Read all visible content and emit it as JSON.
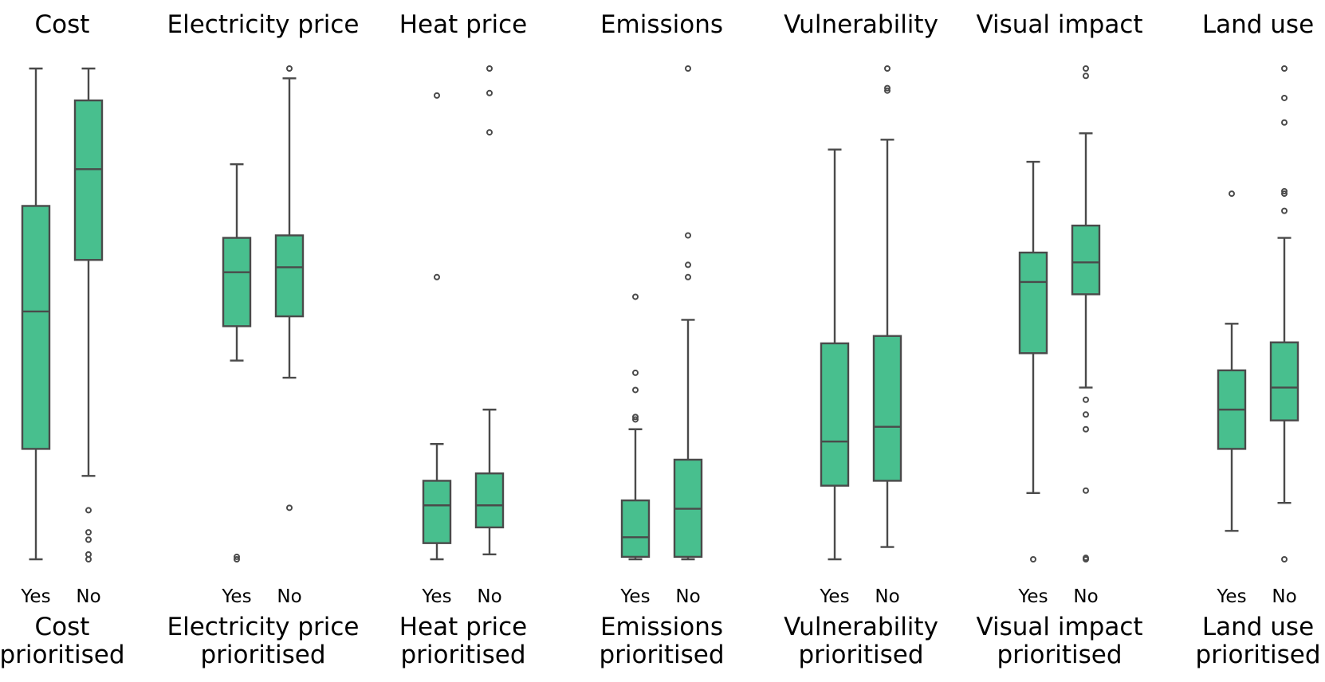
{
  "chart_data": {
    "type": "box",
    "description_units": "normalized score (0 = minimum, 1 = maximum)",
    "colors": {
      "box_fill": "#48BF8E",
      "box_edge": "#4A4A4A",
      "outlier": "#4A4A4A"
    },
    "ylim": [
      0,
      1
    ],
    "panels": [
      {
        "title": "Cost",
        "xlabel_line1": "Cost",
        "xlabel_line2": "prioritised",
        "categories": [
          "Yes",
          "No"
        ],
        "boxes": [
          {
            "category": "Yes",
            "whisker_low": 0.0,
            "q1": 0.225,
            "median": 0.505,
            "q3": 0.72,
            "whisker_high": 1.0,
            "outliers": []
          },
          {
            "category": "No",
            "whisker_low": 0.17,
            "q1": 0.61,
            "median": 0.795,
            "q3": 0.935,
            "whisker_high": 1.0,
            "outliers": [
              0.1,
              0.055,
              0.04,
              0.01,
              0.0
            ]
          }
        ]
      },
      {
        "title": "Electricity price",
        "xlabel_line1": "Electricity price",
        "xlabel_line2": "prioritised",
        "categories": [
          "Yes",
          "No"
        ],
        "boxes": [
          {
            "category": "Yes",
            "whisker_low": 0.405,
            "q1": 0.475,
            "median": 0.585,
            "q3": 0.655,
            "whisker_high": 0.805,
            "outliers": [
              0.0,
              0.005
            ]
          },
          {
            "category": "No",
            "whisker_low": 0.37,
            "q1": 0.495,
            "median": 0.595,
            "q3": 0.66,
            "whisker_high": 0.98,
            "outliers": [
              1.0,
              0.105
            ]
          }
        ]
      },
      {
        "title": "Heat price",
        "xlabel_line1": "Heat price",
        "xlabel_line2": "prioritised",
        "categories": [
          "Yes",
          "No"
        ],
        "boxes": [
          {
            "category": "Yes",
            "whisker_low": 0.0,
            "q1": 0.033,
            "median": 0.11,
            "q3": 0.16,
            "whisker_high": 0.235,
            "outliers": [
              0.945,
              0.575
            ]
          },
          {
            "category": "No",
            "whisker_low": 0.01,
            "q1": 0.065,
            "median": 0.11,
            "q3": 0.175,
            "whisker_high": 0.305,
            "outliers": [
              1.0,
              0.95,
              0.87
            ]
          }
        ]
      },
      {
        "title": "Emissions",
        "xlabel_line1": "Emissions",
        "xlabel_line2": "prioritised",
        "categories": [
          "Yes",
          "No"
        ],
        "boxes": [
          {
            "category": "Yes",
            "whisker_low": 0.0,
            "q1": 0.005,
            "median": 0.045,
            "q3": 0.12,
            "whisker_high": 0.265,
            "outliers": [
              0.535,
              0.38,
              0.345,
              0.29,
              0.285
            ]
          },
          {
            "category": "No",
            "whisker_low": 0.0,
            "q1": 0.005,
            "median": 0.103,
            "q3": 0.203,
            "whisker_high": 0.488,
            "outliers": [
              1.0,
              0.66,
              0.6,
              0.575
            ]
          }
        ]
      },
      {
        "title": "Vulnerability",
        "xlabel_line1": "Vulnerability",
        "xlabel_line2": "prioritised",
        "categories": [
          "Yes",
          "No"
        ],
        "boxes": [
          {
            "category": "Yes",
            "whisker_low": 0.0,
            "q1": 0.15,
            "median": 0.24,
            "q3": 0.44,
            "whisker_high": 0.835,
            "outliers": []
          },
          {
            "category": "No",
            "whisker_low": 0.025,
            "q1": 0.16,
            "median": 0.27,
            "q3": 0.455,
            "whisker_high": 0.855,
            "outliers": [
              1.0,
              0.96,
              0.955
            ]
          }
        ]
      },
      {
        "title": "Visual impact",
        "xlabel_line1": "Visual impact",
        "xlabel_line2": "prioritised",
        "categories": [
          "Yes",
          "No"
        ],
        "boxes": [
          {
            "category": "Yes",
            "whisker_low": 0.135,
            "q1": 0.42,
            "median": 0.565,
            "q3": 0.625,
            "whisker_high": 0.81,
            "outliers": [
              0.0
            ]
          },
          {
            "category": "No",
            "whisker_low": 0.35,
            "q1": 0.54,
            "median": 0.605,
            "q3": 0.68,
            "whisker_high": 0.868,
            "outliers": [
              1.0,
              0.985,
              0.325,
              0.295,
              0.265,
              0.14,
              0.0,
              0.003
            ]
          }
        ]
      },
      {
        "title": "Land use",
        "xlabel_line1": "Land use",
        "xlabel_line2": "prioritised",
        "categories": [
          "Yes",
          "No"
        ],
        "boxes": [
          {
            "category": "Yes",
            "whisker_low": 0.058,
            "q1": 0.225,
            "median": 0.305,
            "q3": 0.385,
            "whisker_high": 0.48,
            "outliers": [
              0.745
            ]
          },
          {
            "category": "No",
            "whisker_low": 0.115,
            "q1": 0.283,
            "median": 0.35,
            "q3": 0.442,
            "whisker_high": 0.655,
            "outliers": [
              1.0,
              0.94,
              0.89,
              0.75,
              0.745,
              0.71,
              0.0
            ]
          }
        ]
      }
    ]
  }
}
